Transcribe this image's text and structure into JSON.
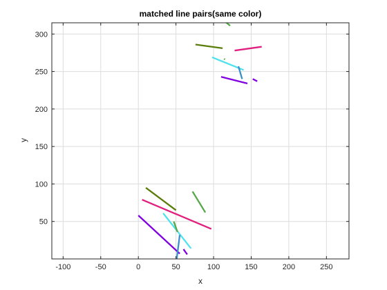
{
  "chart_data": {
    "type": "line",
    "title": "matched line pairs(same color)",
    "xlabel": "x",
    "ylabel": "y",
    "xlim": [
      -115,
      280
    ],
    "ylim": [
      0,
      315
    ],
    "xticks": [
      -100,
      -50,
      0,
      50,
      100,
      150,
      200,
      250
    ],
    "yticks": [
      50,
      100,
      150,
      200,
      250,
      300
    ],
    "grid": true,
    "series": [
      {
        "color": "#5a7d0a",
        "x": [
          10,
          50
        ],
        "y": [
          95,
          65
        ]
      },
      {
        "color": "#5a7d0a",
        "x": [
          76,
          112
        ],
        "y": [
          286,
          281
        ]
      },
      {
        "color": "#e01f7e",
        "x": [
          5,
          97
        ],
        "y": [
          79,
          40
        ]
      },
      {
        "color": "#e01f7e",
        "x": [
          128,
          164
        ],
        "y": [
          278,
          283
        ]
      },
      {
        "color": "#8000e0",
        "x": [
          0,
          55
        ],
        "y": [
          58,
          7
        ]
      },
      {
        "color": "#8000e0",
        "x": [
          110,
          145
        ],
        "y": [
          243,
          234
        ]
      },
      {
        "color": "#4fe2ec",
        "x": [
          33,
          70
        ],
        "y": [
          61,
          14
        ]
      },
      {
        "color": "#4fe2ec",
        "x": [
          98,
          140
        ],
        "y": [
          269,
          252
        ]
      },
      {
        "color": "#54a845",
        "x": [
          72,
          89
        ],
        "y": [
          90,
          62
        ]
      },
      {
        "color": "#54a845",
        "x": [
          116,
          122
        ],
        "y": [
          316,
          311
        ]
      },
      {
        "color": "#3a8fc8",
        "x": [
          51,
          55
        ],
        "y": [
          0,
          32
        ]
      },
      {
        "color": "#3a8fc8",
        "x": [
          133,
          138
        ],
        "y": [
          257,
          240
        ]
      },
      {
        "color": "#8000e0",
        "x": [
          60,
          65
        ],
        "y": [
          13,
          6
        ]
      },
      {
        "color": "#8000e0",
        "x": [
          152,
          158
        ],
        "y": [
          240,
          237
        ]
      },
      {
        "color": "#54a845",
        "x": [
          47,
          52
        ],
        "y": [
          50,
          36
        ]
      },
      {
        "color": "#54a845",
        "x": [
          114,
          115
        ],
        "y": [
          267,
          266
        ]
      }
    ]
  }
}
